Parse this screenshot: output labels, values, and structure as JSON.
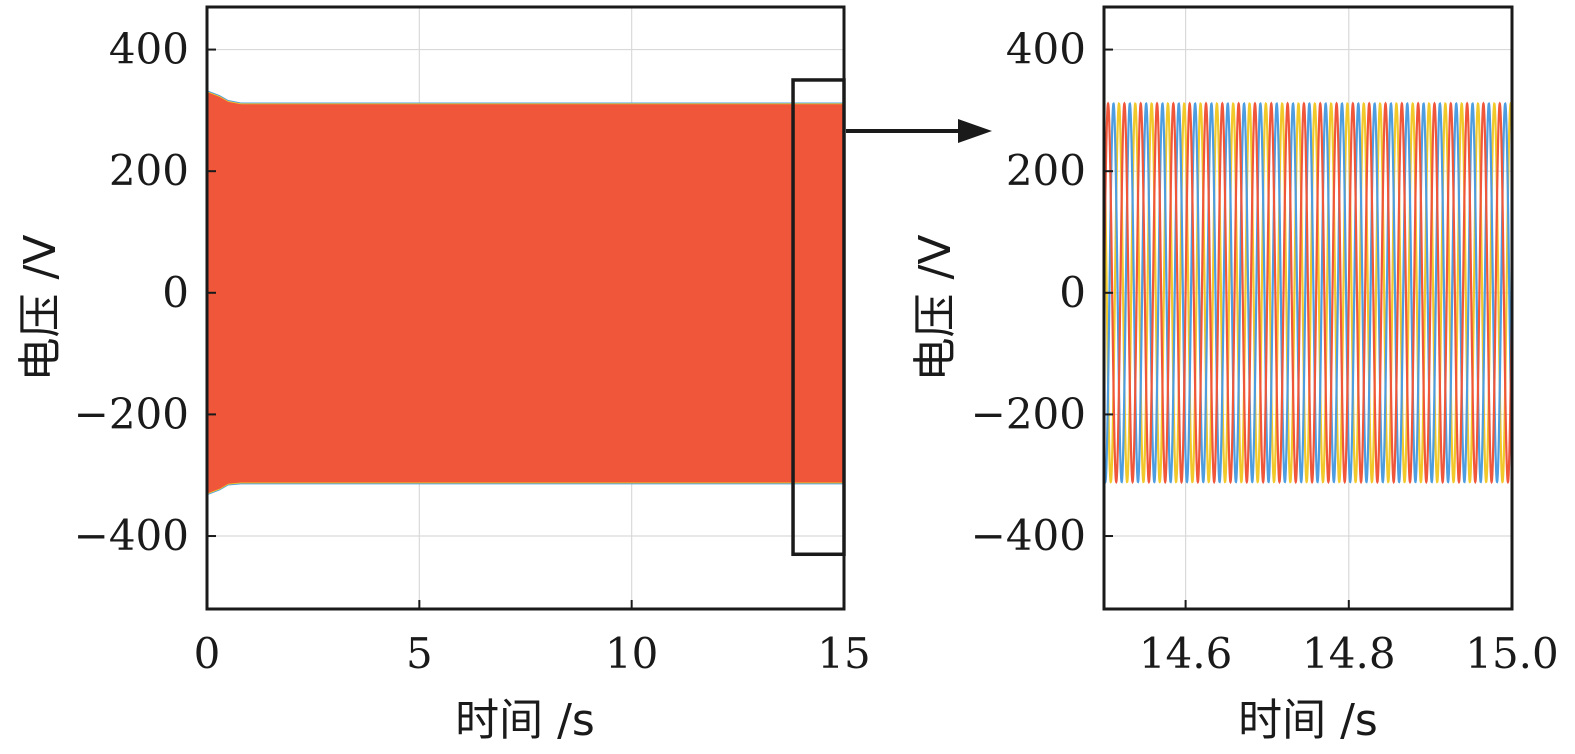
{
  "colors": {
    "phase_a": "#F0563A",
    "phase_b": "#4D9DE0",
    "phase_c": "#F2C92A",
    "frame": "#1a1a1a",
    "grid": "#d9d9d9"
  },
  "chart_data": [
    {
      "type": "line",
      "xlabel": "时间 /s",
      "ylabel": "电压 /V",
      "xlim": [
        0,
        15
      ],
      "ylim": [
        -520,
        470
      ],
      "xticks": [
        "0",
        "5",
        "10",
        "15"
      ],
      "yticks": [
        "400",
        "200",
        "0",
        "−200",
        "−400"
      ],
      "grid": true,
      "envelope": {
        "x": [
          0,
          0.3,
          0.5,
          0.8,
          2,
          5,
          10,
          15
        ],
        "upper": [
          330,
          322,
          314,
          310,
          310,
          310,
          310,
          310
        ],
        "lower": [
          -330,
          -322,
          -314,
          -312,
          -312,
          -312,
          -312,
          -312
        ]
      },
      "zoom_region": {
        "x": [
          13.8,
          15
        ],
        "y": [
          -430,
          350
        ]
      }
    },
    {
      "type": "line",
      "xlabel": "时间 /s",
      "ylabel": "电压 /V",
      "xlim": [
        14.5,
        15.0
      ],
      "ylim": [
        -520,
        470
      ],
      "xticks": [
        "14.6",
        "14.8",
        "15.0"
      ],
      "yticks": [
        "400",
        "200",
        "0",
        "−200",
        "−400"
      ],
      "grid": true,
      "series_model": {
        "amplitude": 311,
        "frequency_hz": 50,
        "phase_shifts_deg": [
          0,
          -120,
          120
        ]
      }
    }
  ]
}
